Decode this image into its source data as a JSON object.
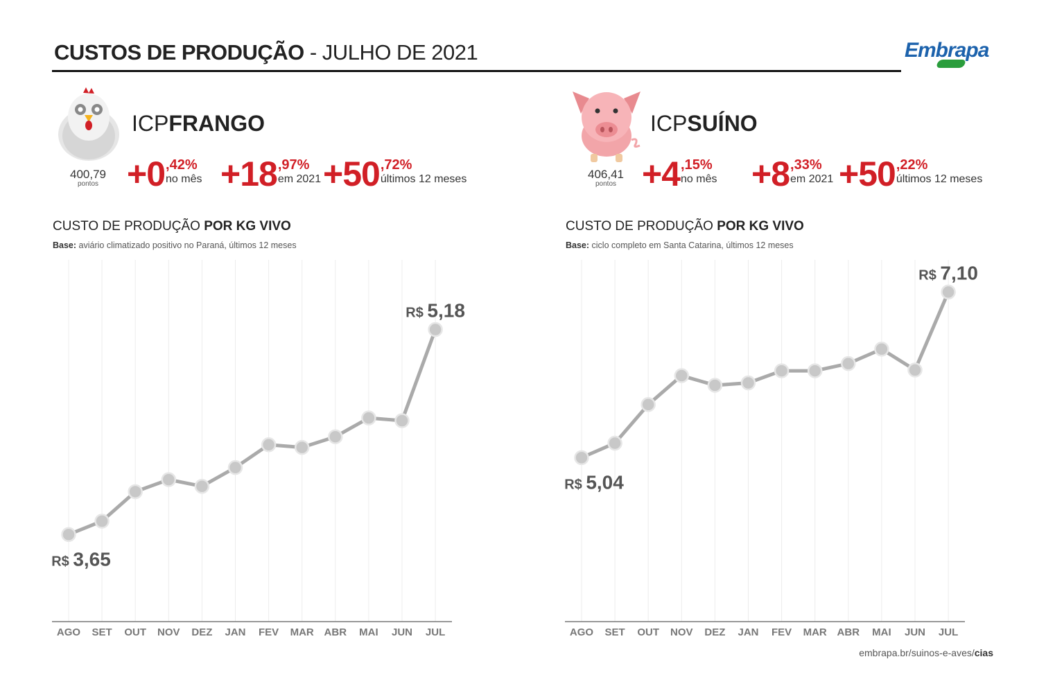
{
  "header": {
    "title_bold": "CUSTOS DE PRODUÇÃO",
    "title_rest": "- JULHO DE 2021",
    "logo": "Embrapa"
  },
  "frango": {
    "icp_prefix": "ICP",
    "icp_name": "FRANGO",
    "points_value": "400,79",
    "points_label": "pontos",
    "stats": [
      {
        "big": "+0",
        "dec": ",42%",
        "sub": "no mês"
      },
      {
        "big": "+18",
        "dec": ",97%",
        "sub": "em 2021"
      },
      {
        "big": "+50",
        "dec": ",72%",
        "sub": "últimos 12 meses"
      }
    ],
    "section_title_normal": "CUSTO DE PRODUÇÃO",
    "section_title_bold": "POR KG VIVO",
    "base_label": "Base:",
    "base_text": "aviário climatizado positivo no Paraná, últimos 12 meses",
    "icon": "chicken-icon"
  },
  "suino": {
    "icp_prefix": "ICP",
    "icp_name": "SUÍNO",
    "points_value": "406,41",
    "points_label": "pontos",
    "stats": [
      {
        "big": "+4",
        "dec": ",15%",
        "sub": "no mês"
      },
      {
        "big": "+8",
        "dec": ",33%",
        "sub": "em 2021"
      },
      {
        "big": "+50",
        "dec": ",22%",
        "sub": "últimos 12 meses"
      }
    ],
    "section_title_normal": "CUSTO DE PRODUÇÃO",
    "section_title_bold": "POR KG VIVO",
    "base_label": "Base:",
    "base_text": "ciclo completo em Santa Catarina, últimos 12 meses",
    "icon": "pig-icon"
  },
  "footer": {
    "url_normal": "embrapa.br/suinos-e-aves/",
    "url_bold": "cias"
  },
  "colors": {
    "accent_red": "#d11f26",
    "line_gray": "#aaaaaa",
    "marker_gray": "#c8c8c8",
    "brand_blue": "#1c62ac",
    "brand_green": "#2a9d3c"
  },
  "chart_data": [
    {
      "type": "line",
      "title": "CUSTO DE PRODUÇÃO POR KG VIVO",
      "categories": [
        "AGO",
        "SET",
        "OUT",
        "NOV",
        "DEZ",
        "JAN",
        "FEV",
        "MAR",
        "ABR",
        "MAI",
        "JUN",
        "JUL"
      ],
      "values": [
        3.65,
        3.75,
        3.97,
        4.06,
        4.01,
        4.15,
        4.32,
        4.3,
        4.38,
        4.52,
        4.5,
        5.18
      ],
      "ylim": [
        3.0,
        5.7
      ],
      "grid": "vertical",
      "annotations": [
        {
          "index": 0,
          "prefix": "R$",
          "text": "3,65",
          "position": "below"
        },
        {
          "index": 11,
          "prefix": "R$",
          "text": "5,18",
          "position": "above"
        }
      ]
    },
    {
      "type": "line",
      "title": "CUSTO DE PRODUÇÃO POR KG VIVO",
      "categories": [
        "AGO",
        "SET",
        "OUT",
        "NOV",
        "DEZ",
        "JAN",
        "FEV",
        "MAR",
        "ABR",
        "MAI",
        "JUN",
        "JUL"
      ],
      "values": [
        5.04,
        5.22,
        5.7,
        6.06,
        5.94,
        5.97,
        6.12,
        6.12,
        6.21,
        6.39,
        6.13,
        7.1
      ],
      "ylim": [
        3.0,
        7.5
      ],
      "grid": "vertical",
      "annotations": [
        {
          "index": 0,
          "prefix": "R$",
          "text": "5,04",
          "position": "below"
        },
        {
          "index": 11,
          "prefix": "R$",
          "text": "7,10",
          "position": "above"
        }
      ]
    }
  ]
}
